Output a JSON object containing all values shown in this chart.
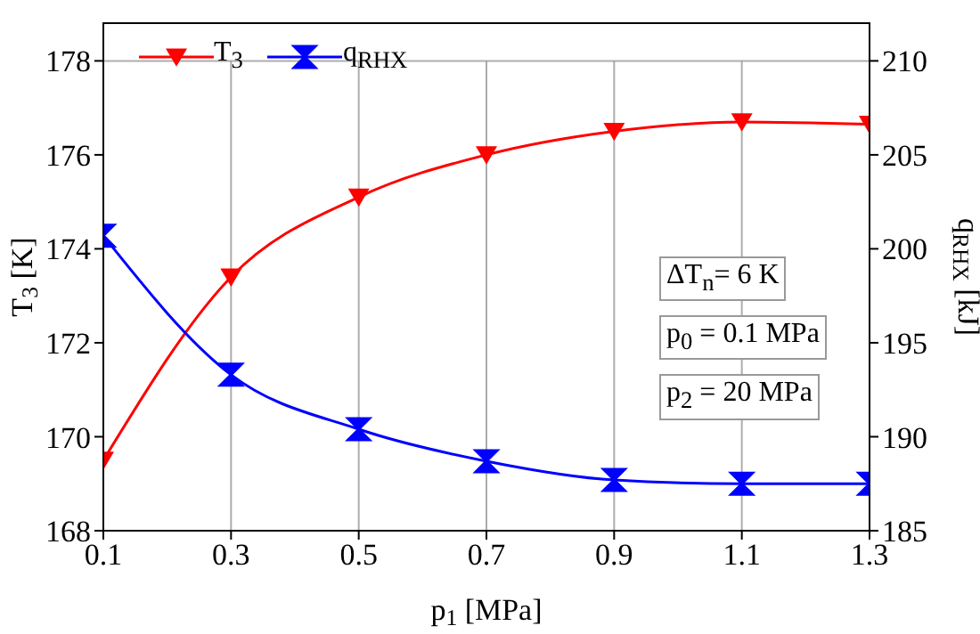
{
  "chart_data": {
    "type": "line",
    "xlabel": "p$_{1}$  [MPa]",
    "ylabel": "T$_{3}$ [K]",
    "y2label": "q$_{RHX}$ [kJ]",
    "x": [
      0.1,
      0.3,
      0.5,
      0.7,
      0.9,
      1.1,
      1.3
    ],
    "xlim": [
      0.1,
      1.3
    ],
    "xticks": [
      0.1,
      0.3,
      0.5,
      0.7,
      0.9,
      1.1,
      1.3
    ],
    "ylim": [
      168,
      178
    ],
    "yticks": [
      168,
      170,
      172,
      174,
      176,
      178
    ],
    "y2lim": [
      185,
      210
    ],
    "y2ticks": [
      185,
      190,
      195,
      200,
      205,
      210
    ],
    "series": [
      {
        "name": "T$_{3}$",
        "color": "#ff0000",
        "marker": "triangle",
        "values": [
          169.5,
          173.4,
          175.1,
          176.0,
          176.5,
          176.7,
          176.65
        ]
      },
      {
        "name": "q$_{RHX}$",
        "color": "#0000ff",
        "marker": "cross",
        "axis": "y2",
        "values": [
          200.7,
          193.3,
          190.4,
          188.7,
          187.7,
          187.5,
          187.5
        ]
      }
    ],
    "annotations": [
      "ΔT$_{n}$= 6 K",
      "p$_{0}$ = 0.1 MPa",
      "p$_{2}$ = 20 MPa"
    ],
    "grid": true,
    "legend": "top left"
  }
}
